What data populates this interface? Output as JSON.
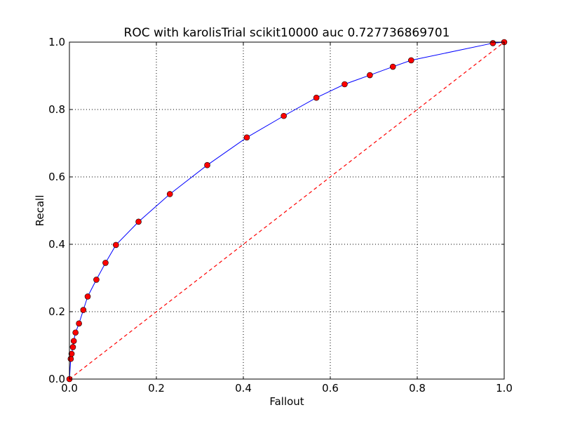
{
  "chart_data": {
    "type": "line",
    "title": "ROC with karolisTrial scikit10000 auc 0.727736869701",
    "xlabel": "Fallout",
    "ylabel": "Recall",
    "xlim": [
      0.0,
      1.0
    ],
    "ylim": [
      0.0,
      1.0
    ],
    "xticks": [
      "0.0",
      "0.2",
      "0.4",
      "0.6",
      "0.8",
      "1.0"
    ],
    "yticks": [
      "0.0",
      "0.2",
      "0.4",
      "0.6",
      "0.8",
      "1.0"
    ],
    "grid": true,
    "series": [
      {
        "x": [
          0.0,
          0.003,
          0.005,
          0.008,
          0.01,
          0.014,
          0.022,
          0.032,
          0.042,
          0.062,
          0.083,
          0.107,
          0.159,
          0.231,
          0.317,
          0.408,
          0.493,
          0.568,
          0.633,
          0.691,
          0.744,
          0.786,
          0.974,
          1.0
        ],
        "y": [
          0.0,
          0.06,
          0.075,
          0.095,
          0.113,
          0.138,
          0.165,
          0.205,
          0.245,
          0.295,
          0.345,
          0.398,
          0.467,
          0.549,
          0.635,
          0.717,
          0.781,
          0.835,
          0.875,
          0.902,
          0.927,
          0.946,
          0.997,
          1.0
        ],
        "line_color": "#0000ff",
        "marker_color": "#ff0000",
        "style": "solid line with circle markers"
      },
      {
        "x": [
          0.0,
          1.0
        ],
        "y": [
          0.0,
          1.0
        ],
        "line_color": "#ff0000",
        "style": "dashed"
      }
    ]
  }
}
